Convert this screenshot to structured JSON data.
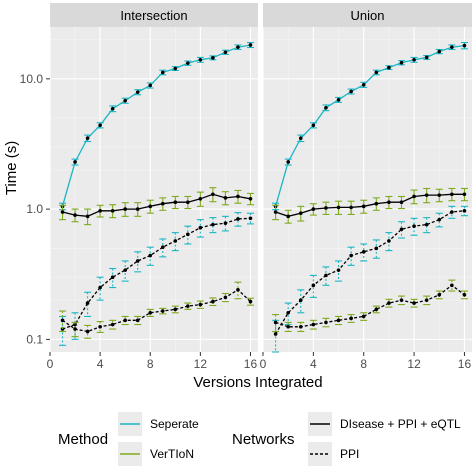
{
  "colors": {
    "separate": "#1AB6C4",
    "vertion": "#7FA91F",
    "black": "#000000",
    "panel_bg": "#EBEBEB",
    "strip_bg": "#D9D9D9",
    "grid_major": "#FFFFFF",
    "grid_minor": "#F5F5F5"
  },
  "chart_data": {
    "type": "line",
    "ylabel": "Time (s)",
    "xlabel": "Versions Integrated",
    "y_scale": "log10",
    "ylim": [
      0.08,
      25
    ],
    "xlim": [
      0,
      16.6
    ],
    "x_ticks": [
      0,
      4,
      8,
      12,
      16
    ],
    "x_tick_labels": [
      "0",
      "4",
      "8",
      "12",
      "16"
    ],
    "y_ticks": [
      0.1,
      1.0,
      10.0
    ],
    "y_tick_labels": [
      "0.1",
      "1.0",
      "10.0"
    ],
    "grid": true,
    "legend": {
      "position": "bottom",
      "method_title": "Method",
      "method_items": [
        {
          "label": "Seperate",
          "color_key": "separate"
        },
        {
          "label": "VerTIoN",
          "color_key": "vertion"
        }
      ],
      "networks_title": "Networks",
      "networks_items": [
        {
          "label": "DIsease + PPI + eQTL",
          "dash": "solid"
        },
        {
          "label": "PPI",
          "dash": "dashed"
        }
      ]
    },
    "x": [
      1,
      2,
      3,
      4,
      5,
      6,
      7,
      8,
      9,
      10,
      11,
      12,
      13,
      14,
      15,
      16
    ],
    "panels": [
      {
        "title": "Intersection",
        "series": [
          {
            "method": "Seperate",
            "network": "DIsease + PPI + eQTL",
            "y": [
              1.05,
              2.3,
              3.5,
              4.4,
              5.9,
              6.8,
              7.9,
              8.9,
              11.2,
              12.0,
              13.2,
              14.0,
              14.5,
              16.0,
              17.5,
              18.2
            ],
            "err": [
              0.06,
              0.12,
              0.2,
              0.2,
              0.3,
              0.3,
              0.35,
              0.4,
              0.45,
              0.4,
              0.5,
              0.6,
              0.5,
              0.6,
              0.7,
              0.8
            ]
          },
          {
            "method": "VerTIoN",
            "network": "DIsease + PPI + eQTL",
            "y": [
              0.95,
              0.9,
              0.88,
              0.97,
              0.97,
              1.0,
              1.0,
              1.05,
              1.1,
              1.13,
              1.13,
              1.2,
              1.3,
              1.22,
              1.25,
              1.2
            ],
            "err": [
              0.12,
              0.1,
              0.12,
              0.1,
              0.11,
              0.12,
              0.12,
              0.12,
              0.12,
              0.12,
              0.12,
              0.15,
              0.16,
              0.14,
              0.14,
              0.12
            ]
          },
          {
            "method": "Seperate",
            "network": "PPI",
            "y": [
              0.12,
              0.13,
              0.19,
              0.25,
              0.3,
              0.34,
              0.4,
              0.44,
              0.51,
              0.57,
              0.64,
              0.72,
              0.76,
              0.78,
              0.84,
              0.85
            ],
            "err": [
              0.03,
              0.03,
              0.04,
              0.05,
              0.05,
              0.06,
              0.07,
              0.07,
              0.08,
              0.09,
              0.1,
              0.11,
              0.1,
              0.1,
              0.1,
              0.08
            ]
          },
          {
            "method": "VerTIoN",
            "network": "PPI",
            "y": [
              0.14,
              0.12,
              0.115,
              0.125,
              0.13,
              0.14,
              0.14,
              0.16,
              0.165,
              0.17,
              0.18,
              0.185,
              0.195,
              0.21,
              0.24,
              0.195
            ],
            "err": [
              0.025,
              0.015,
              0.013,
              0.012,
              0.01,
              0.01,
              0.01,
              0.01,
              0.008,
              0.01,
              0.01,
              0.012,
              0.013,
              0.015,
              0.035,
              0.012
            ]
          }
        ]
      },
      {
        "title": "Union",
        "series": [
          {
            "method": "Seperate",
            "network": "DIsease + PPI + eQTL",
            "y": [
              1.05,
              2.3,
              3.5,
              4.4,
              6.0,
              6.9,
              8.0,
              9.0,
              11.2,
              12.2,
              13.3,
              14.0,
              14.6,
              16.2,
              17.5,
              18.0
            ],
            "err": [
              0.06,
              0.12,
              0.2,
              0.2,
              0.3,
              0.3,
              0.35,
              0.4,
              0.45,
              0.4,
              0.5,
              0.6,
              0.5,
              0.6,
              0.7,
              1.0
            ]
          },
          {
            "method": "VerTIoN",
            "network": "DIsease + PPI + eQTL",
            "y": [
              0.95,
              0.88,
              0.93,
              1.0,
              1.02,
              1.03,
              1.03,
              1.05,
              1.1,
              1.13,
              1.13,
              1.25,
              1.28,
              1.28,
              1.3,
              1.3
            ],
            "err": [
              0.12,
              0.1,
              0.12,
              0.1,
              0.11,
              0.12,
              0.12,
              0.12,
              0.12,
              0.12,
              0.12,
              0.15,
              0.16,
              0.14,
              0.14,
              0.14
            ]
          },
          {
            "method": "Seperate",
            "network": "PPI",
            "y": [
              0.11,
              0.16,
              0.2,
              0.26,
              0.31,
              0.34,
              0.44,
              0.47,
              0.5,
              0.57,
              0.7,
              0.74,
              0.76,
              0.83,
              0.95,
              0.97
            ],
            "err": [
              0.03,
              0.03,
              0.04,
              0.05,
              0.05,
              0.06,
              0.07,
              0.07,
              0.08,
              0.09,
              0.1,
              0.11,
              0.1,
              0.1,
              0.1,
              0.08
            ]
          },
          {
            "method": "VerTIoN",
            "network": "PPI",
            "y": [
              0.135,
              0.125,
              0.125,
              0.13,
              0.135,
              0.14,
              0.145,
              0.15,
              0.17,
              0.19,
              0.2,
              0.19,
              0.2,
              0.22,
              0.26,
              0.22
            ],
            "err": [
              0.02,
              0.01,
              0.01,
              0.01,
              0.01,
              0.01,
              0.01,
              0.01,
              0.01,
              0.013,
              0.015,
              0.013,
              0.015,
              0.015,
              0.025,
              0.015
            ]
          }
        ]
      }
    ]
  }
}
